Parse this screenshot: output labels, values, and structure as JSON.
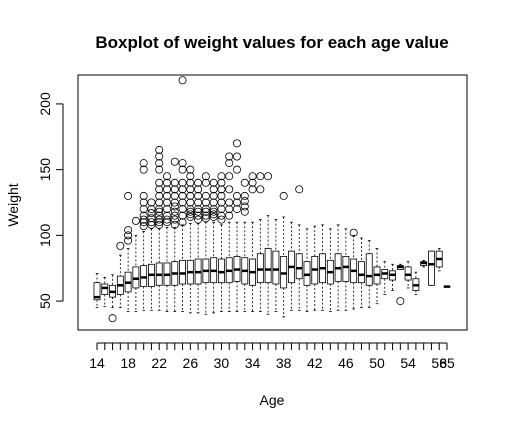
{
  "chart_data": {
    "type": "boxplot",
    "title": "Boxplot of weight values for each age value",
    "xlabel": "Age",
    "ylabel": "Weight",
    "ylim": [
      28,
      222
    ],
    "yticks": [
      50,
      100,
      150,
      200
    ],
    "xtick_labels": [
      "14",
      "18",
      "22",
      "26",
      "30",
      "34",
      "38",
      "42",
      "46",
      "50",
      "54",
      "58",
      "65"
    ],
    "grid": false,
    "boxes": [
      {
        "age": "14",
        "whisker_low": 45,
        "q1": 51,
        "median": 53,
        "q3": 64,
        "whisker_high": 71,
        "outliers": []
      },
      {
        "age": "15",
        "whisker_low": 46,
        "q1": 55,
        "median": 60,
        "q3": 63,
        "whisker_high": 68,
        "outliers": []
      },
      {
        "age": "16",
        "whisker_low": 45,
        "q1": 53,
        "median": 57,
        "q3": 62,
        "whisker_high": 70,
        "outliers": [
          37
        ]
      },
      {
        "age": "17",
        "whisker_low": 45,
        "q1": 55,
        "median": 62,
        "q3": 69,
        "whisker_high": 85,
        "outliers": [
          92
        ]
      },
      {
        "age": "18",
        "whisker_low": 42,
        "q1": 57,
        "median": 64,
        "q3": 72,
        "whisker_high": 90,
        "outliers": [
          96,
          100,
          104,
          130
        ]
      },
      {
        "age": "19",
        "whisker_low": 42,
        "q1": 60,
        "median": 67,
        "q3": 76,
        "whisker_high": 100,
        "outliers": [
          111
        ]
      },
      {
        "age": "20",
        "whisker_low": 43,
        "q1": 61,
        "median": 68,
        "q3": 77,
        "whisker_high": 103,
        "outliers": [
          107,
          110,
          112,
          115,
          120,
          125,
          130,
          150,
          155
        ]
      },
      {
        "age": "21",
        "whisker_low": 43,
        "q1": 61,
        "median": 70,
        "q3": 78,
        "whisker_high": 105,
        "outliers": [
          108,
          110,
          113,
          117,
          120,
          125
        ]
      },
      {
        "age": "22",
        "whisker_low": 43,
        "q1": 62,
        "median": 70,
        "q3": 79,
        "whisker_high": 105,
        "outliers": [
          108,
          110,
          112,
          115,
          118,
          120,
          125,
          130,
          135,
          140,
          150,
          155,
          160,
          165
        ]
      },
      {
        "age": "23",
        "whisker_low": 42,
        "q1": 62,
        "median": 70,
        "q3": 79,
        "whisker_high": 106,
        "outliers": [
          110,
          112,
          115,
          120,
          125,
          130,
          135,
          140,
          145
        ]
      },
      {
        "age": "24",
        "whisker_low": 42,
        "q1": 62,
        "median": 71,
        "q3": 80,
        "whisker_high": 106,
        "outliers": [
          108,
          112,
          115,
          118,
          122,
          125,
          130,
          135,
          140,
          156
        ]
      },
      {
        "age": "25",
        "whisker_low": 42,
        "q1": 63,
        "median": 71,
        "q3": 81,
        "whisker_high": 108,
        "outliers": [
          110,
          115,
          120,
          125,
          130,
          135,
          140,
          150,
          155,
          218
        ]
      },
      {
        "age": "26",
        "whisker_low": 41,
        "q1": 63,
        "median": 72,
        "q3": 81,
        "whisker_high": 109,
        "outliers": [
          114,
          116,
          118,
          120,
          125,
          130,
          135,
          140,
          145,
          150
        ]
      },
      {
        "age": "27",
        "whisker_low": 41,
        "q1": 63,
        "median": 72,
        "q3": 82,
        "whisker_high": 109,
        "outliers": [
          112,
          115,
          118,
          120,
          125,
          130,
          135,
          140
        ]
      },
      {
        "age": "28",
        "whisker_low": 40,
        "q1": 64,
        "median": 73,
        "q3": 82,
        "whisker_high": 110,
        "outliers": [
          113,
          115,
          118,
          120,
          125,
          130,
          140,
          145
        ]
      },
      {
        "age": "29",
        "whisker_low": 41,
        "q1": 64,
        "median": 73,
        "q3": 83,
        "whisker_high": 110,
        "outliers": [
          114,
          116,
          118,
          120,
          125,
          130,
          135,
          140
        ]
      },
      {
        "age": "30",
        "whisker_low": 42,
        "q1": 64,
        "median": 72,
        "q3": 82,
        "whisker_high": 108,
        "outliers": [
          112,
          115,
          120,
          125,
          130,
          135,
          140,
          145
        ]
      },
      {
        "age": "31",
        "whisker_low": 42,
        "q1": 64,
        "median": 73,
        "q3": 83,
        "whisker_high": 110,
        "outliers": [
          115,
          120,
          125,
          135,
          145,
          155,
          160
        ]
      },
      {
        "age": "32",
        "whisker_low": 42,
        "q1": 65,
        "median": 74,
        "q3": 84,
        "whisker_high": 110,
        "outliers": [
          120,
          125,
          130,
          150,
          160,
          170
        ]
      },
      {
        "age": "33",
        "whisker_low": 42,
        "q1": 63,
        "median": 73,
        "q3": 83,
        "whisker_high": 110,
        "outliers": [
          118,
          122,
          126,
          130,
          140
        ]
      },
      {
        "age": "34",
        "whisker_low": 42,
        "q1": 62,
        "median": 72,
        "q3": 82,
        "whisker_high": 110,
        "outliers": [
          135,
          140,
          145
        ]
      },
      {
        "age": "35",
        "whisker_low": 42,
        "q1": 64,
        "median": 74,
        "q3": 86,
        "whisker_high": 112,
        "outliers": [
          135,
          145
        ]
      },
      {
        "age": "36",
        "whisker_low": 40,
        "q1": 64,
        "median": 74,
        "q3": 90,
        "whisker_high": 115,
        "outliers": [
          145
        ]
      },
      {
        "age": "37",
        "whisker_low": 42,
        "q1": 63,
        "median": 74,
        "q3": 88,
        "whisker_high": 112,
        "outliers": []
      },
      {
        "age": "38",
        "whisker_low": 38,
        "q1": 60,
        "median": 71,
        "q3": 84,
        "whisker_high": 114,
        "outliers": [
          130
        ]
      },
      {
        "age": "39",
        "whisker_low": 43,
        "q1": 64,
        "median": 76,
        "q3": 88,
        "whisker_high": 110,
        "outliers": []
      },
      {
        "age": "40",
        "whisker_low": 43,
        "q1": 67,
        "median": 75,
        "q3": 86,
        "whisker_high": 108,
        "outliers": [
          135
        ]
      },
      {
        "age": "41",
        "whisker_low": 42,
        "q1": 62,
        "median": 70,
        "q3": 80,
        "whisker_high": 105,
        "outliers": []
      },
      {
        "age": "42",
        "whisker_low": 43,
        "q1": 63,
        "median": 74,
        "q3": 84,
        "whisker_high": 107,
        "outliers": []
      },
      {
        "age": "43",
        "whisker_low": 43,
        "q1": 64,
        "median": 75,
        "q3": 86,
        "whisker_high": 108,
        "outliers": []
      },
      {
        "age": "44",
        "whisker_low": 42,
        "q1": 63,
        "median": 72,
        "q3": 81,
        "whisker_high": 105,
        "outliers": []
      },
      {
        "age": "45",
        "whisker_low": 43,
        "q1": 65,
        "median": 75,
        "q3": 86,
        "whisker_high": 108,
        "outliers": []
      },
      {
        "age": "46",
        "whisker_low": 43,
        "q1": 65,
        "median": 76,
        "q3": 84,
        "whisker_high": 105,
        "outliers": []
      },
      {
        "age": "47",
        "whisker_low": 44,
        "q1": 64,
        "median": 73,
        "q3": 82,
        "whisker_high": 100,
        "outliers": [
          102
        ]
      },
      {
        "age": "48",
        "whisker_low": 45,
        "q1": 64,
        "median": 70,
        "q3": 80,
        "whisker_high": 98,
        "outliers": []
      },
      {
        "age": "49",
        "whisker_low": 45,
        "q1": 62,
        "median": 69,
        "q3": 86,
        "whisker_high": 96,
        "outliers": []
      },
      {
        "age": "50",
        "whisker_low": 48,
        "q1": 63,
        "median": 70,
        "q3": 76,
        "whisker_high": 90,
        "outliers": []
      },
      {
        "age": "51",
        "whisker_low": 55,
        "q1": 67,
        "median": 71,
        "q3": 74,
        "whisker_high": 80,
        "outliers": []
      },
      {
        "age": "52",
        "whisker_low": 58,
        "q1": 66,
        "median": 70,
        "q3": 73,
        "whisker_high": 78,
        "outliers": []
      },
      {
        "age": "53",
        "whisker_low": 74,
        "q1": 74,
        "median": 76,
        "q3": 77,
        "whisker_high": 78,
        "outliers": [
          50
        ]
      },
      {
        "age": "54",
        "whisker_low": 60,
        "q1": 66,
        "median": 70,
        "q3": 76,
        "whisker_high": 80,
        "outliers": []
      },
      {
        "age": "55",
        "whisker_low": 55,
        "q1": 58,
        "median": 62,
        "q3": 67,
        "whisker_high": 72,
        "outliers": []
      },
      {
        "age": "58",
        "whisker_low": 76,
        "q1": 77,
        "median": 79,
        "q3": 80,
        "whisker_high": 81,
        "outliers": []
      },
      {
        "age": "60",
        "whisker_low": 62,
        "q1": 62,
        "median": 78,
        "q3": 88,
        "whisker_high": 88,
        "outliers": []
      },
      {
        "age": "65",
        "whisker_low": 73,
        "q1": 76,
        "median": 82,
        "q3": 88,
        "whisker_high": 90,
        "outliers": []
      },
      {
        "age": "66",
        "whisker_low": 61,
        "q1": 61,
        "median": 61,
        "q3": 61,
        "whisker_high": 61,
        "outliers": []
      }
    ]
  }
}
